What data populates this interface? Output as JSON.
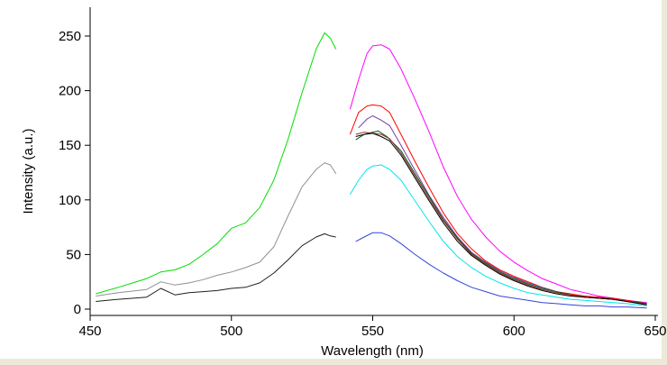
{
  "chart_data": {
    "type": "line",
    "title": "",
    "xlabel": "Wavelength (nm)",
    "ylabel": "Intensity (a.u.)",
    "xlim": [
      450,
      650
    ],
    "ylim": [
      -5,
      275
    ],
    "x_ticks": [
      450,
      500,
      550,
      600,
      650
    ],
    "y_ticks": [
      0,
      50,
      100,
      150,
      200,
      250
    ],
    "grid": false,
    "legend": "none",
    "series": [
      {
        "color": "#00dd00",
        "points": [
          [
            452,
            14
          ],
          [
            460,
            20
          ],
          [
            470,
            28
          ],
          [
            475,
            34
          ],
          [
            480,
            36
          ],
          [
            485,
            41
          ],
          [
            490,
            50
          ],
          [
            495,
            60
          ],
          [
            500,
            74
          ],
          [
            505,
            79
          ],
          [
            510,
            93
          ],
          [
            515,
            118
          ],
          [
            520,
            155
          ],
          [
            525,
            198
          ],
          [
            530,
            238
          ],
          [
            533,
            253
          ],
          [
            535,
            248
          ],
          [
            537,
            238
          ]
        ]
      },
      {
        "color": "#909090",
        "points": [
          [
            452,
            12
          ],
          [
            460,
            15
          ],
          [
            470,
            18
          ],
          [
            475,
            25
          ],
          [
            480,
            22
          ],
          [
            485,
            24
          ],
          [
            490,
            27
          ],
          [
            495,
            31
          ],
          [
            500,
            34
          ],
          [
            505,
            38
          ],
          [
            510,
            43
          ],
          [
            515,
            57
          ],
          [
            520,
            85
          ],
          [
            525,
            112
          ],
          [
            530,
            128
          ],
          [
            533,
            134
          ],
          [
            535,
            132
          ],
          [
            537,
            124
          ]
        ]
      },
      {
        "color": "#202020",
        "points": [
          [
            452,
            7
          ],
          [
            460,
            9
          ],
          [
            470,
            11
          ],
          [
            475,
            19
          ],
          [
            480,
            13
          ],
          [
            485,
            15
          ],
          [
            490,
            16
          ],
          [
            495,
            17
          ],
          [
            500,
            19
          ],
          [
            505,
            20
          ],
          [
            510,
            24
          ],
          [
            515,
            33
          ],
          [
            520,
            45
          ],
          [
            525,
            58
          ],
          [
            530,
            66
          ],
          [
            533,
            69
          ],
          [
            535,
            67
          ],
          [
            537,
            66
          ]
        ]
      },
      {
        "color": "#ff00ff",
        "points": [
          [
            542,
            183
          ],
          [
            545,
            210
          ],
          [
            548,
            234
          ],
          [
            550,
            241
          ],
          [
            553,
            242
          ],
          [
            556,
            238
          ],
          [
            560,
            220
          ],
          [
            565,
            192
          ],
          [
            570,
            162
          ],
          [
            575,
            130
          ],
          [
            580,
            103
          ],
          [
            585,
            82
          ],
          [
            590,
            66
          ],
          [
            595,
            53
          ],
          [
            600,
            43
          ],
          [
            605,
            35
          ],
          [
            610,
            28
          ],
          [
            615,
            23
          ],
          [
            620,
            18
          ],
          [
            625,
            15
          ],
          [
            630,
            12
          ],
          [
            635,
            10
          ],
          [
            640,
            8
          ],
          [
            647,
            6
          ]
        ]
      },
      {
        "color": "#ff0000",
        "points": [
          [
            542,
            160
          ],
          [
            545,
            180
          ],
          [
            548,
            186
          ],
          [
            550,
            187
          ],
          [
            553,
            186
          ],
          [
            556,
            180
          ],
          [
            560,
            160
          ],
          [
            565,
            135
          ],
          [
            570,
            111
          ],
          [
            575,
            88
          ],
          [
            580,
            69
          ],
          [
            585,
            55
          ],
          [
            590,
            44
          ],
          [
            595,
            36
          ],
          [
            600,
            30
          ],
          [
            605,
            25
          ],
          [
            610,
            20
          ],
          [
            615,
            16
          ],
          [
            620,
            14
          ],
          [
            625,
            12
          ],
          [
            630,
            11
          ],
          [
            635,
            10
          ],
          [
            640,
            8
          ],
          [
            647,
            5
          ]
        ]
      },
      {
        "color": "#7a3fa0",
        "points": [
          [
            545,
            166
          ],
          [
            548,
            174
          ],
          [
            550,
            177
          ],
          [
            553,
            173
          ],
          [
            556,
            168
          ],
          [
            560,
            150
          ],
          [
            565,
            127
          ],
          [
            570,
            104
          ],
          [
            575,
            84
          ],
          [
            580,
            66
          ],
          [
            585,
            52
          ],
          [
            590,
            43
          ],
          [
            595,
            35
          ],
          [
            600,
            29
          ],
          [
            605,
            24
          ],
          [
            610,
            20
          ],
          [
            615,
            16
          ],
          [
            620,
            13
          ],
          [
            625,
            11
          ],
          [
            630,
            10
          ],
          [
            635,
            9
          ],
          [
            640,
            7
          ],
          [
            647,
            5
          ]
        ]
      },
      {
        "color": "#0a5a20",
        "points": [
          [
            544,
            155
          ],
          [
            547,
            160
          ],
          [
            550,
            162
          ],
          [
            552,
            163
          ],
          [
            555,
            158
          ],
          [
            560,
            145
          ],
          [
            565,
            124
          ],
          [
            570,
            103
          ],
          [
            575,
            82
          ],
          [
            580,
            65
          ],
          [
            585,
            51
          ],
          [
            590,
            42
          ],
          [
            595,
            34
          ],
          [
            600,
            28
          ],
          [
            605,
            23
          ],
          [
            610,
            19
          ],
          [
            615,
            16
          ],
          [
            620,
            13
          ],
          [
            625,
            11
          ],
          [
            630,
            10
          ],
          [
            635,
            9
          ],
          [
            640,
            7
          ],
          [
            647,
            5
          ]
        ]
      },
      {
        "color": "#8b2b1f",
        "points": [
          [
            544,
            160
          ],
          [
            547,
            162
          ],
          [
            550,
            161
          ],
          [
            553,
            160
          ],
          [
            556,
            156
          ],
          [
            560,
            143
          ],
          [
            565,
            122
          ],
          [
            570,
            101
          ],
          [
            575,
            81
          ],
          [
            580,
            64
          ],
          [
            585,
            50
          ],
          [
            590,
            41
          ],
          [
            595,
            33
          ],
          [
            600,
            27
          ],
          [
            605,
            22
          ],
          [
            610,
            18
          ],
          [
            615,
            15
          ],
          [
            620,
            13
          ],
          [
            625,
            11
          ],
          [
            630,
            10
          ],
          [
            635,
            9
          ],
          [
            640,
            7
          ],
          [
            647,
            4
          ]
        ]
      },
      {
        "color": "#000000",
        "points": [
          [
            544,
            158
          ],
          [
            547,
            160
          ],
          [
            550,
            161
          ],
          [
            553,
            158
          ],
          [
            556,
            154
          ],
          [
            560,
            141
          ],
          [
            565,
            120
          ],
          [
            570,
            99
          ],
          [
            575,
            79
          ],
          [
            580,
            62
          ],
          [
            585,
            49
          ],
          [
            590,
            40
          ],
          [
            595,
            32
          ],
          [
            600,
            26
          ],
          [
            605,
            21
          ],
          [
            610,
            17
          ],
          [
            615,
            14
          ],
          [
            620,
            12
          ],
          [
            625,
            11
          ],
          [
            630,
            10
          ],
          [
            635,
            9
          ],
          [
            640,
            7
          ],
          [
            647,
            4
          ]
        ]
      },
      {
        "color": "#00e5ee",
        "points": [
          [
            542,
            105
          ],
          [
            545,
            118
          ],
          [
            548,
            128
          ],
          [
            550,
            131
          ],
          [
            553,
            132
          ],
          [
            556,
            128
          ],
          [
            560,
            118
          ],
          [
            565,
            99
          ],
          [
            570,
            80
          ],
          [
            575,
            62
          ],
          [
            580,
            48
          ],
          [
            585,
            38
          ],
          [
            590,
            30
          ],
          [
            595,
            24
          ],
          [
            600,
            19
          ],
          [
            605,
            15
          ],
          [
            610,
            13
          ],
          [
            615,
            11
          ],
          [
            620,
            9
          ],
          [
            625,
            8
          ],
          [
            630,
            7
          ],
          [
            635,
            6
          ],
          [
            640,
            5
          ],
          [
            647,
            3
          ]
        ]
      },
      {
        "color": "#3344dd",
        "points": [
          [
            544,
            62
          ],
          [
            547,
            66
          ],
          [
            550,
            70
          ],
          [
            553,
            70
          ],
          [
            556,
            67
          ],
          [
            560,
            60
          ],
          [
            565,
            50
          ],
          [
            570,
            41
          ],
          [
            575,
            33
          ],
          [
            580,
            26
          ],
          [
            585,
            20
          ],
          [
            590,
            16
          ],
          [
            595,
            12
          ],
          [
            600,
            10
          ],
          [
            605,
            8
          ],
          [
            610,
            6
          ],
          [
            615,
            5
          ],
          [
            620,
            4
          ],
          [
            625,
            3
          ],
          [
            630,
            3
          ],
          [
            635,
            2
          ],
          [
            640,
            2
          ],
          [
            647,
            1
          ]
        ]
      }
    ]
  }
}
